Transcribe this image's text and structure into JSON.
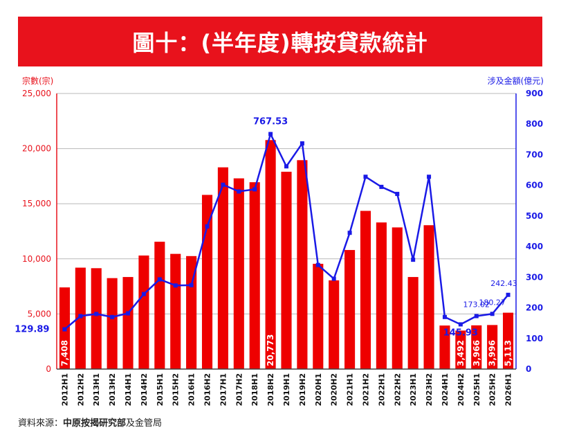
{
  "title": "圖十：(半年度)轉按貸款統計",
  "source": {
    "prefix": "資料來源：",
    "bold": "中原按揭研究部",
    "suffix": "及金管局"
  },
  "colors": {
    "banner": "#e8121c",
    "bar": "#ee0000",
    "line": "#1a1ae6",
    "left_axis": "#e8121c",
    "right_axis": "#1a1ae6"
  },
  "chart_data": {
    "type": "bar",
    "combo": "bar+line",
    "categories": [
      "2012H1",
      "2012H2",
      "2013H1",
      "2013H2",
      "2014H1",
      "2014H2",
      "2015H1",
      "2015H2",
      "2016H1",
      "2016H2",
      "2017H1",
      "2017H2",
      "2018H1",
      "2018H2",
      "2019H1",
      "2019H2",
      "2020H1",
      "2020H2",
      "2021H1",
      "2021H2",
      "2022H1",
      "2022H2",
      "2023H1",
      "2023H2",
      "2024H1",
      "2024H2",
      "2025H1",
      "2025H2",
      "2026H1"
    ],
    "y_left_label": "宗數(宗)",
    "y_right_label": "涉及金額(億元)",
    "ylim_left": [
      0,
      25000
    ],
    "ylim_right": [
      0,
      900
    ],
    "yticks_left": [
      "0",
      "5,000",
      "10,000",
      "15,000",
      "20,000",
      "25,000"
    ],
    "yticks_right": [
      "0",
      "100",
      "200",
      "300",
      "400",
      "500",
      "600",
      "700",
      "800",
      "900"
    ],
    "grid": true,
    "series": [
      {
        "kind": "bar",
        "axis": "left",
        "values": [
          7408,
          9200,
          9150,
          8250,
          8350,
          10300,
          11550,
          10450,
          10250,
          15800,
          18300,
          17300,
          16950,
          20773,
          17900,
          18950,
          9550,
          8050,
          10800,
          14350,
          13300,
          12850,
          8350,
          13050,
          3950,
          3492,
          3966,
          3996,
          5113
        ]
      },
      {
        "kind": "line",
        "axis": "right",
        "values": [
          129.89,
          173,
          180,
          170,
          182,
          245,
          293,
          273,
          274,
          466,
          602,
          580,
          587,
          767.53,
          662,
          737,
          340,
          295,
          445,
          628,
          595,
          572,
          357,
          628,
          170,
          145.93,
          173.02,
          180.27,
          242.43
        ]
      }
    ],
    "bar_labels": [
      {
        "index": 0,
        "text": "7,408"
      },
      {
        "index": 13,
        "text": "20,773"
      },
      {
        "index": 25,
        "text": "3,492"
      },
      {
        "index": 26,
        "text": "3,966"
      },
      {
        "index": 27,
        "text": "3,996"
      },
      {
        "index": 28,
        "text": "5,113"
      }
    ],
    "line_labels": [
      {
        "index": 0,
        "text": "129.89",
        "style": "bold"
      },
      {
        "index": 13,
        "text": "767.53",
        "style": "bold"
      },
      {
        "index": 25,
        "text": "145.93",
        "style": "bold"
      },
      {
        "index": 26,
        "text": "173.02",
        "style": "normal"
      },
      {
        "index": 27,
        "text": "180.27",
        "style": "normal"
      },
      {
        "index": 28,
        "text": "242.43",
        "style": "normal"
      }
    ]
  }
}
